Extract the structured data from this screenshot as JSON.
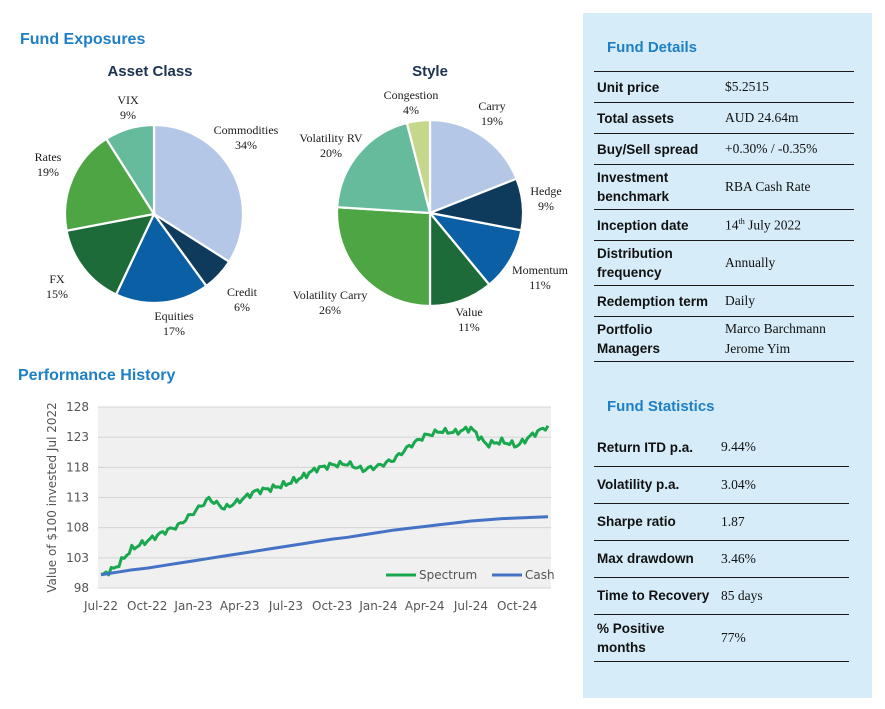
{
  "headings": {
    "exposures": "Fund Exposures",
    "performance": "Performance History",
    "details": "Fund Details",
    "statistics": "Fund Statistics"
  },
  "colors": {
    "accent_blue": "#1f7fc4",
    "panel_bg": "#d6ecf8",
    "spectrum": "#1aa84f",
    "cash": "#4472c4"
  },
  "chart_data": [
    {
      "type": "pie",
      "title": "Asset Class",
      "slices": [
        {
          "label": "Commodities",
          "value": 34,
          "display": "34%",
          "color": "#b4c7e7"
        },
        {
          "label": "Credit",
          "value": 6,
          "display": "6%",
          "color": "#0e3a5c"
        },
        {
          "label": "Equities",
          "value": 17,
          "display": "17%",
          "color": "#0b5fa5"
        },
        {
          "label": "FX",
          "value": 15,
          "display": "15%",
          "color": "#1e6b3a"
        },
        {
          "label": "Rates",
          "value": 19,
          "display": "19%",
          "color": "#4ea543"
        },
        {
          "label": "VIX",
          "value": 9,
          "display": "9%",
          "color": "#66bb9c"
        }
      ]
    },
    {
      "type": "pie",
      "title": "Style",
      "slices": [
        {
          "label": "Carry",
          "value": 19,
          "display": "19%",
          "color": "#b4c7e7"
        },
        {
          "label": "Hedge",
          "value": 9,
          "display": "9%",
          "color": "#0e3a5c"
        },
        {
          "label": "Momentum",
          "value": 11,
          "display": "11%",
          "color": "#0b5fa5"
        },
        {
          "label": "Value",
          "value": 11,
          "display": "11%",
          "color": "#1e6b3a"
        },
        {
          "label": "Volatility Carry",
          "value": 26,
          "display": "26%",
          "color": "#4ea543"
        },
        {
          "label": "Volatility RV",
          "value": 20,
          "display": "20%",
          "color": "#66bb9c"
        },
        {
          "label": "Congestion",
          "value": 4,
          "display": "4%",
          "color": "#c5d78a"
        }
      ]
    },
    {
      "type": "line",
      "title": "Performance History",
      "ylabel": "Value of $100 invested Jul 2022",
      "ylim": [
        98,
        128
      ],
      "yticks": [
        98,
        103,
        108,
        113,
        118,
        123,
        128
      ],
      "xticks": [
        "Jul-22",
        "Oct-22",
        "Jan-23",
        "Apr-23",
        "Jul-23",
        "Oct-23",
        "Jan-24",
        "Apr-24",
        "Jul-24",
        "Oct-24"
      ],
      "x_months": [
        0,
        1,
        2,
        3,
        4,
        5,
        6,
        7,
        8,
        9,
        10,
        11,
        12,
        13,
        14,
        15,
        16,
        17,
        18,
        19,
        20,
        21,
        22,
        23,
        24,
        25,
        26,
        27,
        28,
        29
      ],
      "series": [
        {
          "name": "Spectrum",
          "color": "#1aa84f",
          "values": [
            100.0,
            101.5,
            104.5,
            105.8,
            107.2,
            108.3,
            110.5,
            112.8,
            111.2,
            112.5,
            114.0,
            114.5,
            115.2,
            116.3,
            117.8,
            118.4,
            118.6,
            117.6,
            118.2,
            119.3,
            121.5,
            123.2,
            124.0,
            123.8,
            124.5,
            121.8,
            122.3,
            121.6,
            123.4,
            124.9
          ]
        },
        {
          "name": "Cash",
          "color": "#4472c4",
          "values": [
            100.2,
            100.6,
            101.0,
            101.3,
            101.7,
            102.1,
            102.5,
            102.9,
            103.3,
            103.7,
            104.1,
            104.5,
            104.9,
            105.3,
            105.7,
            106.1,
            106.4,
            106.8,
            107.2,
            107.6,
            107.9,
            108.2,
            108.5,
            108.8,
            109.1,
            109.3,
            109.5,
            109.6,
            109.7,
            109.8
          ]
        }
      ]
    }
  ],
  "fund_details": [
    {
      "key": "Unit price",
      "value": "$5.2515"
    },
    {
      "key": "Total assets",
      "value": "AUD 24.64m"
    },
    {
      "key": "Buy/Sell spread",
      "value": "+0.30% / -0.35%"
    },
    {
      "key": "Investment benchmark",
      "value": "RBA Cash Rate"
    },
    {
      "key": "Inception date",
      "value_day": "14",
      "value_suffix": "th",
      "value_rest": " July 2022"
    },
    {
      "key": "Distribution frequency",
      "value": "Annually"
    },
    {
      "key": "Redemption term",
      "value": "Daily"
    },
    {
      "key": "Portfolio Managers",
      "value": "Marco Barchmann",
      "value2": "Jerome Yim"
    }
  ],
  "fund_statistics": [
    {
      "key": "Return ITD p.a.",
      "value": "9.44%"
    },
    {
      "key": "Volatility p.a.",
      "value": "3.04%"
    },
    {
      "key": "Sharpe ratio",
      "value": "1.87"
    },
    {
      "key": "Max drawdown",
      "value": "3.46%"
    },
    {
      "key": "Time to Recovery",
      "value": "85 days"
    },
    {
      "key": "% Positive months",
      "value": "77%"
    }
  ]
}
